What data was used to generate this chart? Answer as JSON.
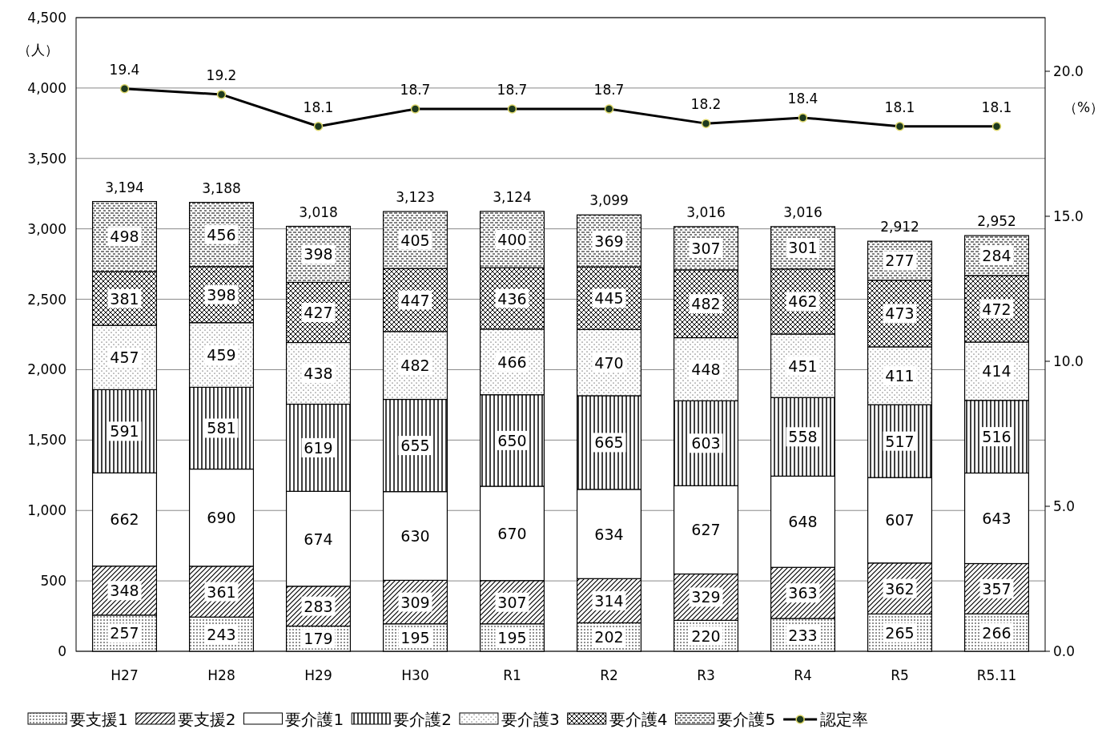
{
  "chart_data": {
    "type": "bar",
    "stacked": true,
    "ylabel": "（人）",
    "y2label": "（%）",
    "categories": [
      "H27",
      "H28",
      "H29",
      "H30",
      "R1",
      "R2",
      "R3",
      "R4",
      "R5",
      "R5.11"
    ],
    "series": [
      {
        "name": "要支援1",
        "color": "#ffffff",
        "values": [
          257,
          243,
          179,
          195,
          195,
          202,
          220,
          233,
          265,
          266
        ]
      },
      {
        "name": "要支援2",
        "color": "#ffffff",
        "values": [
          348,
          361,
          283,
          309,
          307,
          314,
          329,
          363,
          362,
          357
        ]
      },
      {
        "name": "要介護1",
        "color": "#ffffff",
        "values": [
          662,
          690,
          674,
          630,
          670,
          634,
          627,
          648,
          607,
          643
        ]
      },
      {
        "name": "要介護2",
        "color": "#ffffff",
        "values": [
          591,
          581,
          619,
          655,
          650,
          665,
          603,
          558,
          517,
          516
        ]
      },
      {
        "name": "要介護3",
        "color": "#ffffff",
        "values": [
          457,
          459,
          438,
          482,
          466,
          470,
          448,
          451,
          411,
          414
        ]
      },
      {
        "name": "要介護4",
        "color": "#ffffff",
        "values": [
          381,
          398,
          427,
          447,
          436,
          445,
          482,
          462,
          473,
          472
        ]
      },
      {
        "name": "要介護5",
        "color": "#ffffff",
        "values": [
          498,
          456,
          398,
          405,
          400,
          369,
          307,
          301,
          277,
          284
        ]
      },
      {
        "name": "認定率",
        "type": "line",
        "axis": "y2",
        "color": "#000000",
        "marker": "circle",
        "line_style": "solid",
        "values": [
          19.4,
          19.2,
          18.1,
          18.7,
          18.7,
          18.7,
          18.2,
          18.4,
          18.1,
          18.1
        ]
      }
    ],
    "totals": [
      "3,194",
      "3,188",
      "3,018",
      "3,123",
      "3,124",
      "3,099",
      "3,016",
      "3,016",
      "2,912",
      "2,952"
    ],
    "data_labels": true,
    "ylim": [
      0,
      4500
    ],
    "yticks": [
      0,
      500,
      {
        "value": 1000,
        "label": "1,000"
      },
      {
        "value": 1500,
        "label": "1,500"
      },
      {
        "value": 2000,
        "label": "2,000"
      },
      {
        "value": 2500,
        "label": "2,500"
      },
      {
        "value": 3000,
        "label": "3,000"
      },
      {
        "value": 3500,
        "label": "3,500"
      },
      {
        "value": 4000,
        "label": "4,000"
      },
      {
        "value": 4500,
        "label": "4,500"
      }
    ],
    "y2lim": [
      0,
      21.85
    ],
    "y2ticks": [
      {
        "value": 0,
        "label": "0.0"
      },
      {
        "value": 5,
        "label": "5.0"
      },
      {
        "value": 10,
        "label": "10.0"
      },
      {
        "value": 15,
        "label": "15.0"
      },
      {
        "value": 20,
        "label": "20.0"
      }
    ],
    "grid": "y",
    "legend": "bottom"
  }
}
